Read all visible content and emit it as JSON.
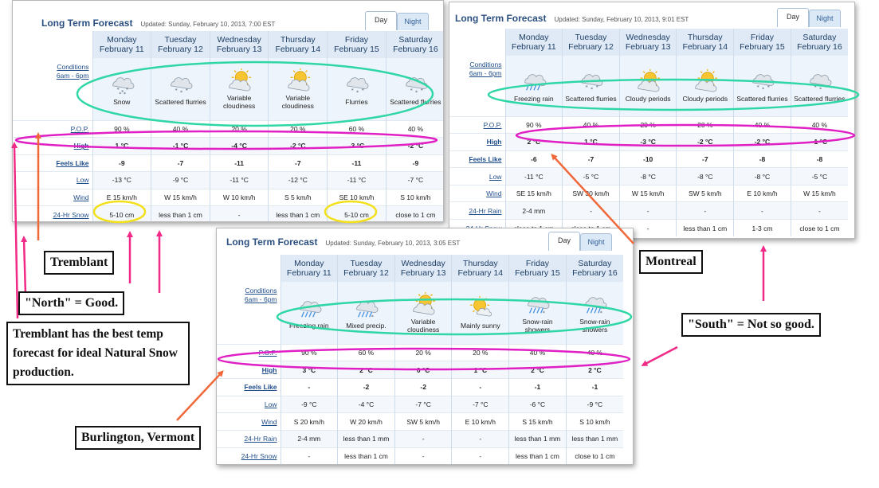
{
  "panels": {
    "tremblant": {
      "title": "Long Term Forecast",
      "updated": "Updated: Sunday, February 10, 2013, 7:00  EST",
      "tabs": {
        "day": "Day",
        "night": "Night"
      },
      "days": [
        {
          "day": "Monday",
          "date": "February 11",
          "icon": "snow-icon",
          "cond": "Snow",
          "pop": "90 %",
          "high": "1 °C",
          "feels": "-9",
          "low": "-13 °C",
          "wind": "E  15 km/h",
          "precip": "5-10 cm"
        },
        {
          "day": "Tuesday",
          "date": "February 12",
          "icon": "flurries-icon",
          "cond": "Scattered flurries",
          "pop": "40 %",
          "high": "-1 °C",
          "feels": "-7",
          "low": "-9 °C",
          "wind": "W  15 km/h",
          "precip": "less than 1 cm"
        },
        {
          "day": "Wednesday",
          "date": "February 13",
          "icon": "sun-cloud-icon",
          "cond": "Variable cloudiness",
          "pop": "20 %",
          "high": "-4 °C",
          "feels": "-11",
          "low": "-11 °C",
          "wind": "W  10 km/h",
          "precip": "-"
        },
        {
          "day": "Thursday",
          "date": "February 14",
          "icon": "sun-cloud-icon",
          "cond": "Variable cloudiness",
          "pop": "20 %",
          "high": "-2 °C",
          "feels": "-7",
          "low": "-12 °C",
          "wind": "S  5 km/h",
          "precip": "less than 1 cm"
        },
        {
          "day": "Friday",
          "date": "February 15",
          "icon": "flurries-icon",
          "cond": "Flurries",
          "pop": "60 %",
          "high": "-3 °C",
          "feels": "-11",
          "low": "-11 °C",
          "wind": "SE  10 km/h",
          "precip": "5-10 cm"
        },
        {
          "day": "Saturday",
          "date": "February 16",
          "icon": "flurries-icon",
          "cond": "Scattered flurries",
          "pop": "40 %",
          "high": "-2 °C",
          "feels": "-9",
          "low": "-7 °C",
          "wind": "S  10 km/h",
          "precip": "close to 1 cm"
        }
      ],
      "labels": {
        "conditions": "Conditions",
        "hours": "6am - 6pm",
        "pop": "P.O.P.",
        "high": "High",
        "feels": "Feels Like",
        "low": "Low",
        "wind": "Wind",
        "precip": "24-Hr Snow"
      }
    },
    "montreal": {
      "title": "Long Term Forecast",
      "updated": "Updated: Sunday, February 10, 2013, 9:01  EST",
      "tabs": {
        "day": "Day",
        "night": "Night"
      },
      "days": [
        {
          "day": "Monday",
          "date": "February 11",
          "icon": "freezing-rain-icon",
          "cond": "Freezing rain",
          "pop": "90 %",
          "high": "2 °C",
          "feels": "-6",
          "low": "-11 °C",
          "wind": "SE  15 km/h",
          "rain": "2-4 mm",
          "snow": "close to 1 cm"
        },
        {
          "day": "Tuesday",
          "date": "February 12",
          "icon": "flurries-icon",
          "cond": "Scattered flurries",
          "pop": "40 %",
          "high": "1 °C",
          "feels": "-7",
          "low": "-5 °C",
          "wind": "SW  30 km/h",
          "rain": "-",
          "snow": "close to 1 cm"
        },
        {
          "day": "Wednesday",
          "date": "February 13",
          "icon": "sun-cloud-icon",
          "cond": "Cloudy periods",
          "pop": "20 %",
          "high": "-3 °C",
          "feels": "-10",
          "low": "-8 °C",
          "wind": "W  15 km/h",
          "rain": "-",
          "snow": "-"
        },
        {
          "day": "Thursday",
          "date": "February 14",
          "icon": "sun-cloud-icon",
          "cond": "Cloudy periods",
          "pop": "20 %",
          "high": "-2 °C",
          "feels": "-7",
          "low": "-8 °C",
          "wind": "SW  5 km/h",
          "rain": "-",
          "snow": "less than 1 cm"
        },
        {
          "day": "Friday",
          "date": "February 15",
          "icon": "flurries-icon",
          "cond": "Scattered flurries",
          "pop": "40 %",
          "high": "-2 °C",
          "feels": "-8",
          "low": "-8 °C",
          "wind": "E  10 km/h",
          "rain": "-",
          "snow": "1-3 cm"
        },
        {
          "day": "Saturday",
          "date": "February 16",
          "icon": "flurries-icon",
          "cond": "Scattered flurries",
          "pop": "40 %",
          "high": "-1 °C",
          "feels": "-8",
          "low": "-5 °C",
          "wind": "W  15 km/h",
          "rain": "-",
          "snow": "close to 1 cm"
        }
      ],
      "labels": {
        "conditions": "Conditions",
        "hours": "6am - 6pm",
        "pop": "P.O.P.",
        "high": "High",
        "feels": "Feels Like",
        "low": "Low",
        "wind": "Wind",
        "rain": "24-Hr Rain",
        "snow": "24-Hr Snow"
      }
    },
    "burlington": {
      "title": "Long Term Forecast",
      "updated": "Updated: Sunday, February 10, 2013, 3:05  EST",
      "tabs": {
        "day": "Day",
        "night": "Night"
      },
      "days": [
        {
          "day": "Monday",
          "date": "February 11",
          "icon": "freezing-rain-icon",
          "cond": "Freezing rain",
          "pop": "90 %",
          "high": "3 °C",
          "feels": "-",
          "low": "-9 °C",
          "wind": "S  20 km/h",
          "rain": "2-4 mm",
          "snow": "-"
        },
        {
          "day": "Tuesday",
          "date": "February 12",
          "icon": "mixed-precip-icon",
          "cond": "Mixed precip.",
          "pop": "60 %",
          "high": "2 °C",
          "feels": "-2",
          "low": "-4 °C",
          "wind": "W  20 km/h",
          "rain": "less than 1 mm",
          "snow": "less than 1 cm"
        },
        {
          "day": "Wednesday",
          "date": "February 13",
          "icon": "sun-cloud-icon",
          "cond": "Variable cloudiness",
          "pop": "20 %",
          "high": "0 °C",
          "feels": "-2",
          "low": "-7 °C",
          "wind": "SW  5 km/h",
          "rain": "-",
          "snow": "-"
        },
        {
          "day": "Thursday",
          "date": "February 14",
          "icon": "sunny-icon",
          "cond": "Mainly sunny",
          "pop": "20 %",
          "high": "1 °C",
          "feels": "-",
          "low": "-7 °C",
          "wind": "E  10 km/h",
          "rain": "-",
          "snow": "-"
        },
        {
          "day": "Friday",
          "date": "February 15",
          "icon": "snow-rain-icon",
          "cond": "Snow-rain showers",
          "pop": "40 %",
          "high": "2 °C",
          "feels": "-1",
          "low": "-6 °C",
          "wind": "S  15 km/h",
          "rain": "less than 1 mm",
          "snow": "less than 1 cm"
        },
        {
          "day": "Saturday",
          "date": "February 16",
          "icon": "snow-rain-icon",
          "cond": "Snow-rain showers",
          "pop": "40 %",
          "high": "2 °C",
          "feels": "-1",
          "low": "-9 °C",
          "wind": "S  10 km/h",
          "rain": "less than 1 mm",
          "snow": "close to 1 cm"
        }
      ],
      "labels": {
        "conditions": "Conditions",
        "hours": "6am - 6pm",
        "pop": "P.O.P.",
        "high": "High",
        "feels": "Feels Like",
        "low": "Low",
        "wind": "Wind",
        "rain": "24-Hr Rain",
        "snow": "24-Hr Snow"
      }
    }
  },
  "callouts": {
    "tremblant": "Tremblant",
    "north": "\"North\" = Good.",
    "best": "Tremblant has the best temp forecast for ideal Natural Snow production.",
    "montreal": "Montreal",
    "south": "\"South\" = Not so good.",
    "burlington": "Burlington, Vermont"
  },
  "colors": {
    "conditions_ring": "#2fd6a6",
    "high_ring": "#e01fc4",
    "snow_ring": "#f2e01a",
    "arrow_pink": "#f02a86",
    "arrow_orange": "#f0683a"
  }
}
